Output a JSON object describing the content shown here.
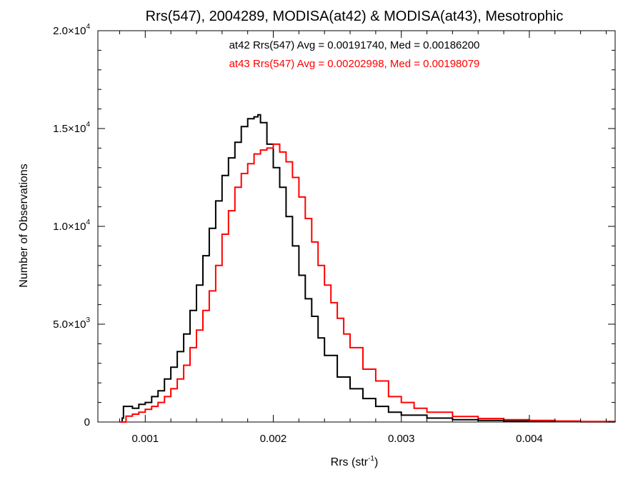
{
  "chart_data": {
    "type": "line",
    "title": "Rrs(547), 2004289, MODISA(at42) & MODISA(at43), Mesotrophic",
    "xlabel": {
      "base": "Rrs (str",
      "sup": "-1",
      "end": ")"
    },
    "ylabel": "Number of Observations",
    "xlim": [
      0.00063,
      0.00467
    ],
    "ylim": [
      0,
      20000
    ],
    "x_ticks": [
      {
        "value": 0.001,
        "label": "0.001"
      },
      {
        "value": 0.002,
        "label": "0.002"
      },
      {
        "value": 0.003,
        "label": "0.003"
      },
      {
        "value": 0.004,
        "label": "0.004"
      }
    ],
    "y_ticks": [
      {
        "value": 0,
        "mant": "0",
        "exp": ""
      },
      {
        "value": 5000,
        "mant": "5.0×10",
        "exp": "3"
      },
      {
        "value": 10000,
        "mant": "1.0×10",
        "exp": "4"
      },
      {
        "value": 15000,
        "mant": "1.5×10",
        "exp": "4"
      },
      {
        "value": 20000,
        "mant": "2.0×10",
        "exp": "4"
      }
    ],
    "annotations": [
      {
        "text": "at42 Rrs(547) Avg = 0.00191740, Med = 0.00186200",
        "color": "#000000"
      },
      {
        "text": "at43 Rrs(547) Avg = 0.00202998, Med = 0.00198079",
        "color": "#ff0000"
      }
    ],
    "series": [
      {
        "color": "#000000",
        "x": [
          0.0008,
          0.00082,
          0.00083,
          0.0009,
          0.00095,
          0.001,
          0.00105,
          0.0011,
          0.00115,
          0.0012,
          0.00125,
          0.0013,
          0.00135,
          0.0014,
          0.00145,
          0.0015,
          0.00155,
          0.0016,
          0.00165,
          0.0017,
          0.00175,
          0.0018,
          0.00185,
          0.00188,
          0.0019,
          0.00195,
          0.002,
          0.00205,
          0.0021,
          0.00215,
          0.0022,
          0.00225,
          0.0023,
          0.00235,
          0.0024,
          0.0025,
          0.0026,
          0.0027,
          0.0028,
          0.0029,
          0.003,
          0.0032,
          0.0034,
          0.0036,
          0.0038,
          0.004,
          0.0042,
          0.0044,
          0.00467
        ],
        "y": [
          0,
          200,
          800,
          700,
          900,
          1000,
          1300,
          1600,
          2200,
          2800,
          3600,
          4500,
          5700,
          7000,
          8500,
          9900,
          11300,
          12600,
          13500,
          14300,
          15100,
          15500,
          15600,
          15700,
          15300,
          14200,
          13000,
          12000,
          10500,
          9000,
          7500,
          6300,
          5400,
          4300,
          3400,
          2300,
          1700,
          1200,
          800,
          500,
          350,
          200,
          120,
          80,
          50,
          30,
          20,
          10,
          5
        ]
      },
      {
        "color": "#ff0000",
        "x": [
          0.0008,
          0.00085,
          0.0009,
          0.00095,
          0.001,
          0.00105,
          0.0011,
          0.00115,
          0.0012,
          0.00125,
          0.0013,
          0.00135,
          0.0014,
          0.00145,
          0.0015,
          0.00155,
          0.0016,
          0.00165,
          0.0017,
          0.00175,
          0.0018,
          0.00185,
          0.0019,
          0.00195,
          0.002,
          0.00205,
          0.0021,
          0.00215,
          0.0022,
          0.00225,
          0.0023,
          0.00235,
          0.0024,
          0.00245,
          0.0025,
          0.00255,
          0.0026,
          0.0027,
          0.0028,
          0.0029,
          0.003,
          0.0031,
          0.0032,
          0.0034,
          0.0036,
          0.0038,
          0.004,
          0.0042,
          0.0044,
          0.00467
        ],
        "y": [
          0,
          300,
          400,
          500,
          650,
          800,
          1000,
          1300,
          1700,
          2200,
          2900,
          3800,
          4700,
          5700,
          6700,
          8000,
          9600,
          10800,
          12000,
          12700,
          13200,
          13700,
          13900,
          14000,
          14200,
          13800,
          13300,
          12500,
          11500,
          10400,
          9200,
          8000,
          7000,
          6100,
          5300,
          4500,
          3800,
          2700,
          2100,
          1300,
          1000,
          700,
          500,
          280,
          180,
          120,
          80,
          50,
          30,
          15
        ]
      }
    ]
  }
}
